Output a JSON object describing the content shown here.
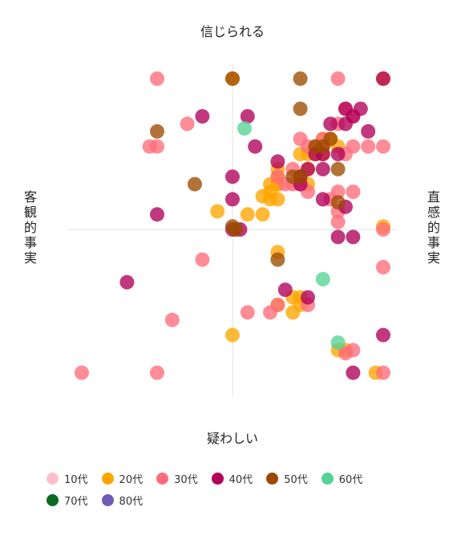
{
  "chart_data": {
    "type": "scatter",
    "title": "",
    "labels": {
      "top": "信じられる",
      "bottom": "疑わしい",
      "left": "客観的事実",
      "right": "直感的事実"
    },
    "xlim": [
      -10,
      10
    ],
    "ylim": [
      -10,
      10
    ],
    "grid": "center-crosshair",
    "legend_position": "bottom-left",
    "series": [
      {
        "name": "10代",
        "color": "#ffc0cb",
        "points": []
      },
      {
        "name": "20代",
        "color": "#ffa500",
        "points": [
          [
            0,
            10
          ],
          [
            10,
            10
          ],
          [
            6,
            6
          ],
          [
            5.5,
            5.5
          ],
          [
            5,
            4
          ],
          [
            6,
            5
          ],
          [
            6.5,
            6
          ],
          [
            7,
            5.5
          ],
          [
            3,
            4
          ],
          [
            3,
            3
          ],
          [
            5,
            3
          ],
          [
            3,
            3.5
          ],
          [
            4.5,
            5
          ],
          [
            5.5,
            5.5
          ],
          [
            2.5,
            2.5
          ],
          [
            2.5,
            3
          ],
          [
            3,
            3
          ],
          [
            5,
            5
          ],
          [
            5.5,
            5
          ],
          [
            2,
            2.2
          ],
          [
            3,
            2
          ],
          [
            2.5,
            2
          ],
          [
            1,
            1
          ],
          [
            2,
            1
          ],
          [
            -1,
            1.2
          ],
          [
            10,
            0.2
          ],
          [
            3,
            -1.5
          ],
          [
            4.5,
            -4.5
          ],
          [
            4,
            -4.5
          ],
          [
            3,
            -5
          ],
          [
            4,
            -5.5
          ],
          [
            4.5,
            -5
          ],
          [
            0,
            -7
          ],
          [
            7,
            -8
          ],
          [
            7.5,
            -8
          ],
          [
            9.5,
            -9.5
          ]
        ]
      },
      {
        "name": "30代",
        "color": "#ff6b7a",
        "points": [
          [
            -5,
            10
          ],
          [
            7,
            10
          ],
          [
            7.5,
            8
          ],
          [
            8,
            7.5
          ],
          [
            7,
            7
          ],
          [
            6,
            6
          ],
          [
            5.5,
            5.5
          ],
          [
            4.5,
            6
          ],
          [
            5,
            5.5
          ],
          [
            6,
            5.5
          ],
          [
            8,
            5.5
          ],
          [
            9,
            5.5
          ],
          [
            10,
            5.5
          ],
          [
            7.5,
            5
          ],
          [
            4,
            4
          ],
          [
            3.5,
            3
          ],
          [
            4,
            3
          ],
          [
            4.5,
            3
          ],
          [
            3,
            3.5
          ],
          [
            5,
            2.5
          ],
          [
            7,
            2.5
          ],
          [
            8,
            2.5
          ],
          [
            6.5,
            2
          ],
          [
            7,
            1.2
          ],
          [
            7,
            0.5
          ],
          [
            -3,
            7
          ],
          [
            -5,
            5.5
          ],
          [
            -5.5,
            5.5
          ],
          [
            10,
            0
          ],
          [
            -2,
            -2
          ],
          [
            10,
            -2.5
          ],
          [
            3,
            -5
          ],
          [
            2.5,
            -5.5
          ],
          [
            5,
            -5
          ],
          [
            -4,
            -6
          ],
          [
            1,
            -5.5
          ],
          [
            8,
            -8
          ],
          [
            7.5,
            -8.2
          ],
          [
            -10,
            -9.5
          ],
          [
            -5,
            -9.5
          ],
          [
            10,
            -9.5
          ]
        ]
      },
      {
        "name": "40代",
        "color": "#b0005a",
        "points": [
          [
            10,
            10
          ],
          [
            7.5,
            8
          ],
          [
            8,
            7.5
          ],
          [
            8.5,
            8
          ],
          [
            7.5,
            7
          ],
          [
            6.5,
            7
          ],
          [
            9,
            6.5
          ],
          [
            -2,
            7.5
          ],
          [
            1,
            7.5
          ],
          [
            1.5,
            5.5
          ],
          [
            3,
            4.5
          ],
          [
            6,
            5
          ],
          [
            5.5,
            5
          ],
          [
            7,
            5
          ],
          [
            6,
            4
          ],
          [
            5,
            4
          ],
          [
            4.5,
            3.5
          ],
          [
            4.5,
            3
          ],
          [
            0,
            3.5
          ],
          [
            6,
            2
          ],
          [
            7.5,
            1.5
          ],
          [
            0,
            2
          ],
          [
            -5,
            1
          ],
          [
            0,
            0
          ],
          [
            0.5,
            0
          ],
          [
            7,
            -0.5
          ],
          [
            8,
            -0.5
          ],
          [
            -7,
            -3.5
          ],
          [
            3.5,
            -4
          ],
          [
            5,
            -4.5
          ],
          [
            10,
            -7
          ],
          [
            8,
            -9.5
          ]
        ]
      },
      {
        "name": "50代",
        "color": "#9c4a00",
        "points": [
          [
            0,
            10
          ],
          [
            4.5,
            10
          ],
          [
            4.5,
            8
          ],
          [
            -5,
            6.5
          ],
          [
            5.5,
            5.5
          ],
          [
            6,
            5.5
          ],
          [
            6.5,
            6
          ],
          [
            7,
            4
          ],
          [
            4,
            3.5
          ],
          [
            4.5,
            3.5
          ],
          [
            -2.5,
            3
          ],
          [
            7,
            1.8
          ],
          [
            0,
            0.2
          ],
          [
            0.2,
            0
          ],
          [
            3,
            -2
          ]
        ]
      },
      {
        "name": "60代",
        "color": "#54d394",
        "points": [
          [
            0.8,
            6.7
          ],
          [
            6,
            -3.3
          ],
          [
            7,
            -7.5
          ]
        ]
      },
      {
        "name": "70代",
        "color": "#0a6b23",
        "points": []
      },
      {
        "name": "80代",
        "color": "#6e5bb4",
        "points": []
      }
    ]
  }
}
